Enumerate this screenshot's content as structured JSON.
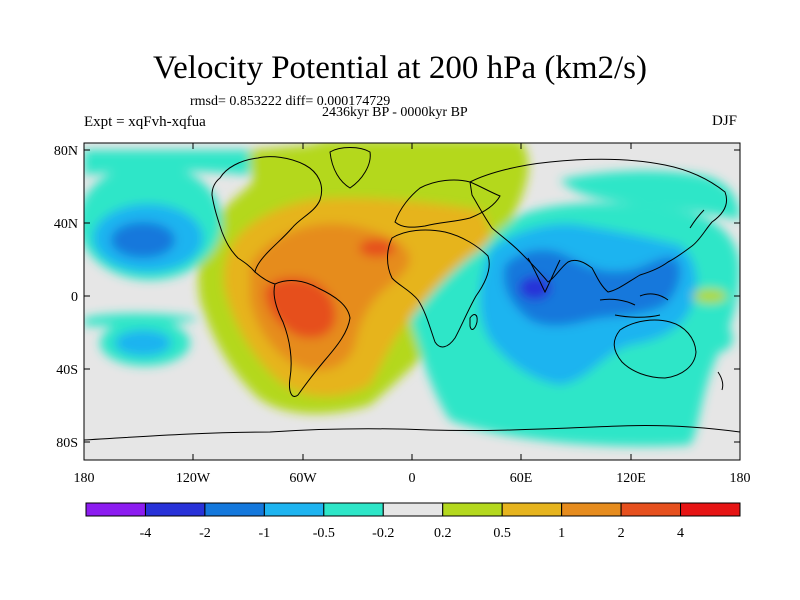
{
  "title": "Velocity Potential at 200 hPa (km2/s)",
  "subtitle_stats": "rmsd= 0.853222 diff= 0.000174729",
  "subtitle_period": "2436kyr BP - 0000kyr BP",
  "left_label": "Expt = xqFvh-xqfua",
  "right_label": "DJF",
  "x_ticks": [
    "180",
    "120W",
    "60W",
    "0",
    "60E",
    "120E",
    "180"
  ],
  "y_ticks": [
    "80N",
    "40N",
    "0",
    "40S",
    "80S"
  ],
  "colorbar": {
    "colors": [
      "#8c1cf0",
      "#2832d8",
      "#1478dc",
      "#1eb4f0",
      "#2ee6c8",
      "#e6e6e6",
      "#b4d81e",
      "#e6b41e",
      "#e68c1e",
      "#e6501e",
      "#e61414"
    ],
    "labels": [
      "-4",
      "-2",
      "-1",
      "-0.5",
      "-0.2",
      "0.2",
      "0.5",
      "1",
      "2",
      "4"
    ]
  }
}
